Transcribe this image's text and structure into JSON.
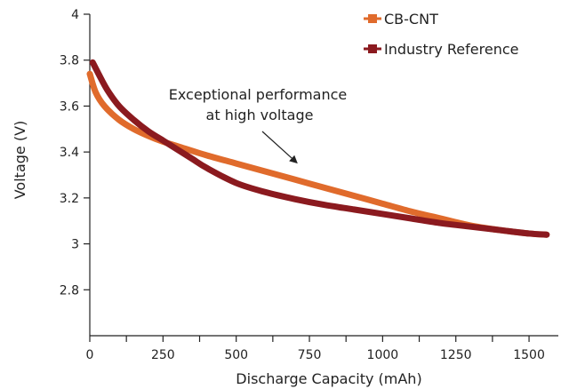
{
  "chart_data": {
    "type": "line",
    "title": "",
    "xlabel": "Discharge Capacity (mAh)",
    "ylabel": "Voltage (V)",
    "xlim": [
      0,
      1600
    ],
    "ylim": [
      2.6,
      4.0
    ],
    "x_ticks": [
      0,
      250,
      500,
      750,
      1000,
      1250,
      1500
    ],
    "x_tick_labels": [
      "0",
      "250",
      "500",
      "750",
      "1000",
      "1250",
      "1500"
    ],
    "y_ticks": [
      2.8,
      3.0,
      3.2,
      3.4,
      3.6,
      3.8,
      4.0
    ],
    "y_tick_labels": [
      "2.8",
      "3",
      "3.2",
      "3.4",
      "3.6",
      "3.8",
      "4"
    ],
    "grid": false,
    "legend": "top-right",
    "series": [
      {
        "name": "CB-CNT",
        "color": "#e06b2c",
        "x": [
          0,
          20,
          50,
          100,
          150,
          200,
          250,
          300,
          400,
          500,
          600,
          700,
          800,
          900,
          1000,
          1100,
          1200,
          1300,
          1400,
          1500,
          1560
        ],
        "y": [
          3.74,
          3.66,
          3.6,
          3.54,
          3.5,
          3.47,
          3.445,
          3.425,
          3.385,
          3.35,
          3.315,
          3.28,
          3.245,
          3.21,
          3.175,
          3.14,
          3.11,
          3.08,
          3.06,
          3.045,
          3.04
        ]
      },
      {
        "name": "Industry Reference",
        "color": "#8b1a1f",
        "x": [
          10,
          30,
          60,
          100,
          150,
          200,
          250,
          300,
          350,
          400,
          500,
          600,
          700,
          800,
          900,
          1000,
          1100,
          1200,
          1300,
          1400,
          1500,
          1560
        ],
        "y": [
          3.79,
          3.74,
          3.67,
          3.6,
          3.54,
          3.49,
          3.45,
          3.41,
          3.37,
          3.33,
          3.265,
          3.225,
          3.195,
          3.17,
          3.15,
          3.13,
          3.11,
          3.09,
          3.075,
          3.06,
          3.045,
          3.04
        ]
      }
    ],
    "annotations": [
      {
        "text_lines": [
          "Exceptional performance",
          "at high voltage"
        ],
        "arrow_to": [
          710,
          3.35
        ]
      }
    ]
  }
}
